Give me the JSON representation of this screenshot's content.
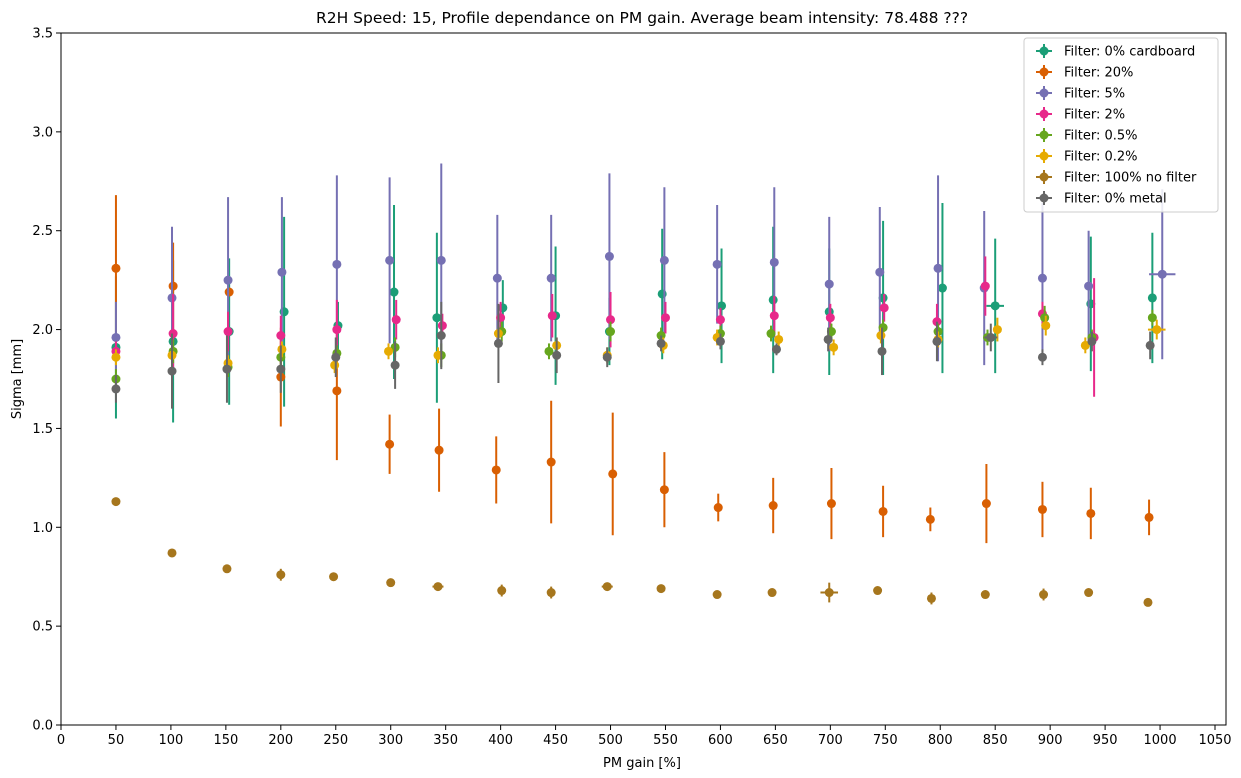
{
  "chart_data": {
    "type": "scatter",
    "title": "R2H Speed: 15, Profile dependance on PM gain. Average beam intensity: 78.488 ???",
    "xlabel": "PM gain [%]",
    "ylabel": "Sigma [mm]",
    "xlim": [
      0,
      1060
    ],
    "ylim": [
      0,
      3.5
    ],
    "xticks": [
      0,
      50,
      100,
      150,
      200,
      250,
      300,
      350,
      400,
      450,
      500,
      550,
      600,
      650,
      700,
      750,
      800,
      850,
      900,
      950,
      1000,
      1050
    ],
    "yticks": [
      0.0,
      0.5,
      1.0,
      1.5,
      2.0,
      2.5,
      3.0,
      3.5
    ],
    "ytick_labels": [
      "0.0",
      "0.5",
      "1.0",
      "1.5",
      "2.0",
      "2.5",
      "3.0",
      "3.5"
    ],
    "grid": false,
    "legend_position": "top-right",
    "series": [
      {
        "name": "Filter: 0% cardboard",
        "color": "#1b9e77",
        "points": [
          {
            "x": 50,
            "y": 1.91,
            "yerr": 0.36
          },
          {
            "x": 102,
            "y": 1.94,
            "yerr": 0.41
          },
          {
            "x": 153,
            "y": 1.99,
            "yerr": 0.37
          },
          {
            "x": 203,
            "y": 2.09,
            "yerr": 0.48
          },
          {
            "x": 252,
            "y": 2.02,
            "yerr": 0.12
          },
          {
            "x": 303,
            "y": 2.19,
            "yerr": 0.44
          },
          {
            "x": 342,
            "y": 2.06,
            "yerr": 0.43
          },
          {
            "x": 402,
            "y": 2.11,
            "yerr": 0.14
          },
          {
            "x": 450,
            "y": 2.07,
            "yerr": 0.35
          },
          {
            "x": 499,
            "y": 1.99,
            "yerr": 0.17
          },
          {
            "x": 547,
            "y": 2.18,
            "yerr": 0.33
          },
          {
            "x": 601,
            "y": 2.12,
            "yerr": 0.29
          },
          {
            "x": 648,
            "y": 2.15,
            "yerr": 0.37
          },
          {
            "x": 699,
            "y": 2.09,
            "yerr": 0.32
          },
          {
            "x": 748,
            "y": 2.16,
            "yerr": 0.39
          },
          {
            "x": 802,
            "y": 2.21,
            "yerr": 0.43
          },
          {
            "x": 850,
            "y": 2.12,
            "yerr": 0.34,
            "xerr": 8
          },
          {
            "x": 937,
            "y": 2.13,
            "yerr": 0.34
          },
          {
            "x": 993,
            "y": 2.16,
            "yerr": 0.33
          }
        ]
      },
      {
        "name": "Filter: 20%",
        "color": "#d95f02",
        "points": [
          {
            "x": 50,
            "y": 2.31,
            "yerr": 0.37
          },
          {
            "x": 102,
            "y": 2.22,
            "yerr": 0.22
          },
          {
            "x": 153,
            "y": 2.19,
            "yerr": 0.0
          },
          {
            "x": 200,
            "y": 1.76,
            "yerr": 0.25
          },
          {
            "x": 251,
            "y": 1.69,
            "yerr": 0.35
          },
          {
            "x": 299,
            "y": 1.42,
            "yerr": 0.15
          },
          {
            "x": 344,
            "y": 1.39,
            "yerr": 0.21
          },
          {
            "x": 396,
            "y": 1.29,
            "yerr": 0.17
          },
          {
            "x": 446,
            "y": 1.33,
            "yerr": 0.31
          },
          {
            "x": 502,
            "y": 1.27,
            "yerr": 0.31
          },
          {
            "x": 549,
            "y": 1.19,
            "yerr": 0.19
          },
          {
            "x": 598,
            "y": 1.1,
            "yerr": 0.07
          },
          {
            "x": 648,
            "y": 1.11,
            "yerr": 0.14
          },
          {
            "x": 701,
            "y": 1.12,
            "yerr": 0.18
          },
          {
            "x": 748,
            "y": 1.08,
            "yerr": 0.13
          },
          {
            "x": 791,
            "y": 1.04,
            "yerr": 0.06
          },
          {
            "x": 842,
            "y": 1.12,
            "yerr": 0.2
          },
          {
            "x": 893,
            "y": 1.09,
            "yerr": 0.14
          },
          {
            "x": 937,
            "y": 1.07,
            "yerr": 0.13
          },
          {
            "x": 990,
            "y": 1.05,
            "yerr": 0.09
          }
        ]
      },
      {
        "name": "Filter: 5%",
        "color": "#7570b3",
        "points": [
          {
            "x": 50,
            "y": 1.96,
            "yerr": 0.18
          },
          {
            "x": 101,
            "y": 2.16,
            "yerr": 0.36
          },
          {
            "x": 152,
            "y": 2.25,
            "yerr": 0.42
          },
          {
            "x": 201,
            "y": 2.29,
            "yerr": 0.38
          },
          {
            "x": 251,
            "y": 2.33,
            "yerr": 0.45
          },
          {
            "x": 299,
            "y": 2.35,
            "yerr": 0.42
          },
          {
            "x": 346,
            "y": 2.35,
            "yerr": 0.49
          },
          {
            "x": 397,
            "y": 2.26,
            "yerr": 0.32
          },
          {
            "x": 446,
            "y": 2.26,
            "yerr": 0.32
          },
          {
            "x": 499,
            "y": 2.37,
            "yerr": 0.42
          },
          {
            "x": 549,
            "y": 2.35,
            "yerr": 0.37
          },
          {
            "x": 597,
            "y": 2.33,
            "yerr": 0.3
          },
          {
            "x": 649,
            "y": 2.34,
            "yerr": 0.38
          },
          {
            "x": 699,
            "y": 2.23,
            "yerr": 0.34
          },
          {
            "x": 745,
            "y": 2.29,
            "yerr": 0.33
          },
          {
            "x": 798,
            "y": 2.31,
            "yerr": 0.47
          },
          {
            "x": 840,
            "y": 2.21,
            "yerr": 0.39
          },
          {
            "x": 893,
            "y": 2.26,
            "yerr": 0.38
          },
          {
            "x": 935,
            "y": 2.22,
            "yerr": 0.28
          },
          {
            "x": 1002,
            "y": 2.28,
            "yerr": 0.43,
            "xerr": 12
          }
        ]
      },
      {
        "name": "Filter: 2%",
        "color": "#e7298a",
        "points": [
          {
            "x": 50,
            "y": 1.89,
            "yerr": 0.05
          },
          {
            "x": 102,
            "y": 1.98,
            "yerr": 0.2
          },
          {
            "x": 152,
            "y": 1.99,
            "yerr": 0.1
          },
          {
            "x": 200,
            "y": 1.97,
            "yerr": 0.1
          },
          {
            "x": 251,
            "y": 2.0,
            "yerr": 0.15
          },
          {
            "x": 305,
            "y": 2.05,
            "yerr": 0.1
          },
          {
            "x": 347,
            "y": 2.02,
            "yerr": 0.06
          },
          {
            "x": 400,
            "y": 2.06,
            "yerr": 0.08
          },
          {
            "x": 447,
            "y": 2.07,
            "yerr": 0.11
          },
          {
            "x": 500,
            "y": 2.05,
            "yerr": 0.14
          },
          {
            "x": 550,
            "y": 2.06,
            "yerr": 0.08
          },
          {
            "x": 600,
            "y": 2.05,
            "yerr": 0.06
          },
          {
            "x": 649,
            "y": 2.07,
            "yerr": 0.1
          },
          {
            "x": 700,
            "y": 2.06,
            "yerr": 0.07
          },
          {
            "x": 749,
            "y": 2.11,
            "yerr": 0.07
          },
          {
            "x": 797,
            "y": 2.04,
            "yerr": 0.09
          },
          {
            "x": 841,
            "y": 2.22,
            "yerr": 0.15
          },
          {
            "x": 893,
            "y": 2.08,
            "yerr": 0.06
          },
          {
            "x": 940,
            "y": 1.96,
            "yerr": 0.3
          }
        ]
      },
      {
        "name": "Filter: 0.5%",
        "color": "#66a61e",
        "points": [
          {
            "x": 50,
            "y": 1.75,
            "yerr": 0.05
          },
          {
            "x": 102,
            "y": 1.89,
            "yerr": 0.06
          },
          {
            "x": 152,
            "y": 1.81,
            "yerr": 0.05
          },
          {
            "x": 200,
            "y": 1.86,
            "yerr": 0.04
          },
          {
            "x": 251,
            "y": 1.88,
            "yerr": 0.04
          },
          {
            "x": 304,
            "y": 1.91,
            "yerr": 0.05
          },
          {
            "x": 346,
            "y": 1.87,
            "yerr": 0.06
          },
          {
            "x": 401,
            "y": 1.99,
            "yerr": 0.05
          },
          {
            "x": 444,
            "y": 1.89,
            "yerr": 0.04
          },
          {
            "x": 500,
            "y": 1.99,
            "yerr": 0.05
          },
          {
            "x": 546,
            "y": 1.97,
            "yerr": 0.04
          },
          {
            "x": 600,
            "y": 1.98,
            "yerr": 0.04
          },
          {
            "x": 646,
            "y": 1.98,
            "yerr": 0.04
          },
          {
            "x": 701,
            "y": 1.99,
            "yerr": 0.04
          },
          {
            "x": 748,
            "y": 2.01,
            "yerr": 0.04
          },
          {
            "x": 798,
            "y": 1.99,
            "yerr": 0.04
          },
          {
            "x": 843,
            "y": 1.96,
            "yerr": 0.04
          },
          {
            "x": 895,
            "y": 2.06,
            "yerr": 0.06
          },
          {
            "x": 938,
            "y": 1.96,
            "yerr": 0.04
          },
          {
            "x": 993,
            "y": 2.06,
            "yerr": 0.04
          }
        ]
      },
      {
        "name": "Filter: 0.2%",
        "color": "#e6ab02",
        "points": [
          {
            "x": 50,
            "y": 1.86,
            "yerr": 0.04
          },
          {
            "x": 101,
            "y": 1.87,
            "yerr": 0.04
          },
          {
            "x": 152,
            "y": 1.83,
            "yerr": 0.04
          },
          {
            "x": 201,
            "y": 1.9,
            "yerr": 0.04
          },
          {
            "x": 249,
            "y": 1.82,
            "yerr": 0.04
          },
          {
            "x": 298,
            "y": 1.89,
            "yerr": 0.04
          },
          {
            "x": 343,
            "y": 1.87,
            "yerr": 0.04
          },
          {
            "x": 398,
            "y": 1.98,
            "yerr": 0.04
          },
          {
            "x": 451,
            "y": 1.92,
            "yerr": 0.04
          },
          {
            "x": 497,
            "y": 1.87,
            "yerr": 0.04
          },
          {
            "x": 548,
            "y": 1.92,
            "yerr": 0.04
          },
          {
            "x": 597,
            "y": 1.96,
            "yerr": 0.04
          },
          {
            "x": 653,
            "y": 1.95,
            "yerr": 0.04
          },
          {
            "x": 703,
            "y": 1.91,
            "yerr": 0.04
          },
          {
            "x": 746,
            "y": 1.97,
            "yerr": 0.04
          },
          {
            "x": 798,
            "y": 1.95,
            "yerr": 0.04
          },
          {
            "x": 852,
            "y": 2.0,
            "yerr": 0.06
          },
          {
            "x": 896,
            "y": 2.02,
            "yerr": 0.05
          },
          {
            "x": 932,
            "y": 1.92,
            "yerr": 0.04
          },
          {
            "x": 997,
            "y": 2.0,
            "yerr": 0.05,
            "xerr": 8
          }
        ]
      },
      {
        "name": "Filter: 100% no filter",
        "color": "#a6761d",
        "points": [
          {
            "x": 50,
            "y": 1.13,
            "yerr": 0.0
          },
          {
            "x": 101,
            "y": 0.87,
            "yerr": 0.0
          },
          {
            "x": 151,
            "y": 0.79,
            "yerr": 0.0
          },
          {
            "x": 200,
            "y": 0.76,
            "yerr": 0.03
          },
          {
            "x": 248,
            "y": 0.75,
            "yerr": 0.0
          },
          {
            "x": 300,
            "y": 0.72,
            "yerr": 0.0
          },
          {
            "x": 343,
            "y": 0.7,
            "yerr": 0.0,
            "xerr": 5
          },
          {
            "x": 401,
            "y": 0.68,
            "yerr": 0.03
          },
          {
            "x": 446,
            "y": 0.67,
            "yerr": 0.03
          },
          {
            "x": 497,
            "y": 0.7,
            "yerr": 0.0,
            "xerr": 5
          },
          {
            "x": 546,
            "y": 0.69,
            "yerr": 0.0
          },
          {
            "x": 597,
            "y": 0.66,
            "yerr": 0.0
          },
          {
            "x": 647,
            "y": 0.67,
            "yerr": 0.02
          },
          {
            "x": 699,
            "y": 0.67,
            "yerr": 0.05,
            "xerr": 8
          },
          {
            "x": 743,
            "y": 0.68,
            "yerr": 0.0
          },
          {
            "x": 792,
            "y": 0.64,
            "yerr": 0.03
          },
          {
            "x": 841,
            "y": 0.66,
            "yerr": 0.0
          },
          {
            "x": 894,
            "y": 0.66,
            "yerr": 0.03
          },
          {
            "x": 935,
            "y": 0.67,
            "yerr": 0.0
          },
          {
            "x": 989,
            "y": 0.62,
            "yerr": 0.0
          }
        ]
      },
      {
        "name": "Filter: 0% metal",
        "color": "#666666",
        "points": [
          {
            "x": 50,
            "y": 1.7,
            "yerr": 0.07
          },
          {
            "x": 101,
            "y": 1.79,
            "yerr": 0.19
          },
          {
            "x": 151,
            "y": 1.8,
            "yerr": 0.17
          },
          {
            "x": 200,
            "y": 1.8,
            "yerr": 0.12
          },
          {
            "x": 250,
            "y": 1.86,
            "yerr": 0.1
          },
          {
            "x": 304,
            "y": 1.82,
            "yerr": 0.12
          },
          {
            "x": 346,
            "y": 1.97,
            "yerr": 0.17
          },
          {
            "x": 398,
            "y": 1.93,
            "yerr": 0.2
          },
          {
            "x": 451,
            "y": 1.87,
            "yerr": 0.09
          },
          {
            "x": 497,
            "y": 1.86,
            "yerr": 0.05
          },
          {
            "x": 546,
            "y": 1.93,
            "yerr": 0.04
          },
          {
            "x": 600,
            "y": 1.94,
            "yerr": 0.04
          },
          {
            "x": 651,
            "y": 1.9,
            "yerr": 0.03
          },
          {
            "x": 698,
            "y": 1.95,
            "yerr": 0.06
          },
          {
            "x": 747,
            "y": 1.89,
            "yerr": 0.12
          },
          {
            "x": 797,
            "y": 1.94,
            "yerr": 0.1
          },
          {
            "x": 846,
            "y": 1.96,
            "yerr": 0.07,
            "xerr": 6
          },
          {
            "x": 893,
            "y": 1.86,
            "yerr": 0.04
          },
          {
            "x": 938,
            "y": 1.94,
            "yerr": 0.05
          },
          {
            "x": 991,
            "y": 1.92,
            "yerr": 0.07
          }
        ]
      }
    ]
  }
}
